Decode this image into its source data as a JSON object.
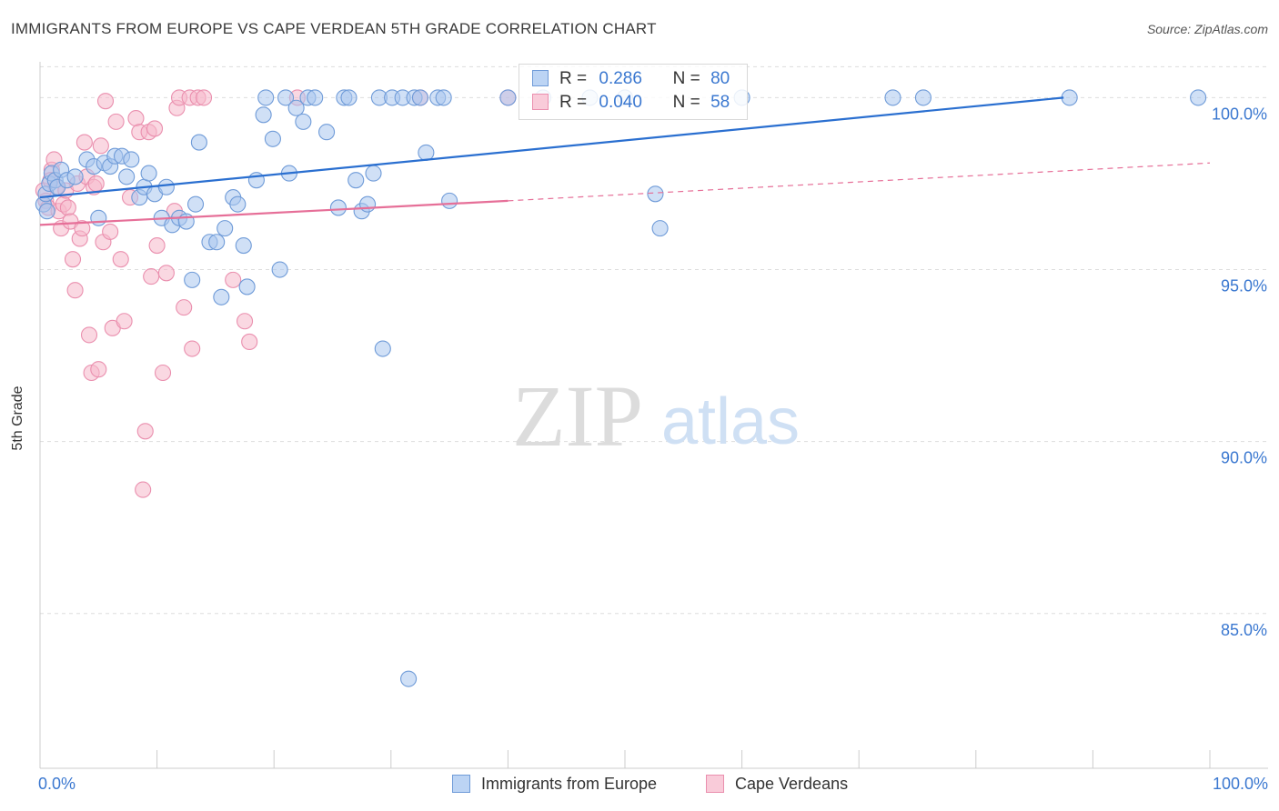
{
  "title": "IMMIGRANTS FROM EUROPE VS CAPE VERDEAN 5TH GRADE CORRELATION CHART",
  "source": "Source: ZipAtlas.com",
  "watermark": {
    "zip": "ZIP",
    "atlas": "atlas"
  },
  "colors": {
    "blue_fill": "#a9c6ef",
    "blue_stroke": "#6f9bd8",
    "blue_line": "#2a6fd0",
    "pink_fill": "#f6b8cb",
    "pink_stroke": "#ea8fae",
    "pink_line": "#e66f98",
    "tick_text": "#3b78d0",
    "grid": "#dddddd"
  },
  "legend_top": {
    "rows": [
      {
        "r_label": "R =",
        "r_value": "0.286",
        "n_label": "N =",
        "n_value": "80"
      },
      {
        "r_label": "R =",
        "r_value": "0.040",
        "n_label": "N =",
        "n_value": "58"
      }
    ]
  },
  "legend_bottom": [
    "Immigrants from Europe",
    "Cape Verdeans"
  ],
  "chart_data": {
    "type": "scatter",
    "title": "IMMIGRANTS FROM EUROPE VS CAPE VERDEAN 5TH GRADE CORRELATION CHART",
    "xlabel": "",
    "ylabel": "5th Grade",
    "xlim": [
      0,
      100
    ],
    "ylim": [
      80.5,
      101.2
    ],
    "x_tick_labels": [
      "0.0%",
      "100.0%"
    ],
    "y_ticks": [
      85,
      90,
      95,
      100
    ],
    "y_tick_labels": [
      "85.0%",
      "90.0%",
      "95.0%",
      "100.0%"
    ],
    "series": [
      {
        "name": "Immigrants from Europe",
        "r": 0.286,
        "n": 80,
        "trend": {
          "x": [
            0,
            87.5
          ],
          "y": [
            97.1,
            100
          ]
        },
        "points": [
          [
            0.3,
            96.9
          ],
          [
            0.5,
            97.2
          ],
          [
            0.8,
            97.5
          ],
          [
            1.0,
            97.8
          ],
          [
            1.3,
            97.6
          ],
          [
            1.5,
            97.4
          ],
          [
            1.8,
            97.9
          ],
          [
            2.3,
            97.6
          ],
          [
            3.0,
            97.7
          ],
          [
            4.0,
            98.2
          ],
          [
            4.6,
            98.0
          ],
          [
            5.0,
            96.5
          ],
          [
            5.5,
            98.1
          ],
          [
            6.0,
            98.0
          ],
          [
            6.4,
            98.3
          ],
          [
            7.0,
            98.3
          ],
          [
            7.8,
            98.2
          ],
          [
            7.4,
            97.7
          ],
          [
            8.5,
            97.1
          ],
          [
            8.9,
            97.4
          ],
          [
            9.3,
            97.8
          ],
          [
            9.8,
            97.2
          ],
          [
            10.4,
            96.5
          ],
          [
            10.8,
            97.4
          ],
          [
            11.3,
            96.3
          ],
          [
            11.9,
            96.5
          ],
          [
            12.5,
            96.4
          ],
          [
            13.0,
            94.7
          ],
          [
            13.3,
            96.9
          ],
          [
            13.6,
            98.7
          ],
          [
            14.5,
            95.8
          ],
          [
            15.1,
            95.8
          ],
          [
            15.5,
            94.2
          ],
          [
            15.8,
            96.2
          ],
          [
            16.5,
            97.1
          ],
          [
            16.9,
            96.9
          ],
          [
            17.4,
            95.7
          ],
          [
            17.7,
            94.5
          ],
          [
            18.5,
            97.6
          ],
          [
            19.1,
            99.5
          ],
          [
            19.3,
            100.0
          ],
          [
            19.9,
            98.8
          ],
          [
            20.5,
            95.0
          ],
          [
            21.0,
            100.0
          ],
          [
            21.3,
            97.8
          ],
          [
            21.9,
            99.7
          ],
          [
            22.5,
            99.3
          ],
          [
            22.9,
            100.0
          ],
          [
            23.5,
            100.0
          ],
          [
            24.5,
            99.0
          ],
          [
            25.5,
            96.8
          ],
          [
            26.0,
            100.0
          ],
          [
            26.4,
            100.0
          ],
          [
            27.0,
            97.6
          ],
          [
            27.5,
            96.7
          ],
          [
            28.0,
            96.9
          ],
          [
            28.5,
            97.8
          ],
          [
            29.0,
            100.0
          ],
          [
            29.3,
            92.7
          ],
          [
            30.1,
            100.0
          ],
          [
            31.0,
            100.0
          ],
          [
            31.5,
            83.1
          ],
          [
            32.0,
            100.0
          ],
          [
            32.5,
            100.0
          ],
          [
            33.0,
            98.4
          ],
          [
            34.0,
            100.0
          ],
          [
            34.5,
            100.0
          ],
          [
            35.0,
            97.0
          ],
          [
            40.0,
            100.0
          ],
          [
            43.0,
            100.0
          ],
          [
            47.0,
            100.0
          ],
          [
            50.0,
            100.0
          ],
          [
            52.6,
            97.2
          ],
          [
            53.0,
            96.2
          ],
          [
            60.0,
            100.0
          ],
          [
            72.9,
            100.0
          ],
          [
            75.5,
            100.0
          ],
          [
            88.0,
            100.0
          ],
          [
            99.0,
            100.0
          ],
          [
            0.6,
            96.7
          ]
        ]
      },
      {
        "name": "Cape Verdeans",
        "r": 0.04,
        "n": 58,
        "trend": {
          "x": [
            0,
            40.0
          ],
          "y": [
            96.3,
            97.0
          ]
        },
        "trend_dashed": {
          "x": [
            40.0,
            100
          ],
          "y": [
            97.0,
            98.1
          ]
        },
        "points": [
          [
            0.3,
            97.3
          ],
          [
            0.5,
            97.0
          ],
          [
            0.7,
            96.8
          ],
          [
            1.0,
            97.9
          ],
          [
            1.2,
            98.2
          ],
          [
            1.4,
            97.4
          ],
          [
            1.6,
            96.7
          ],
          [
            1.8,
            96.2
          ],
          [
            2.0,
            96.9
          ],
          [
            2.2,
            97.3
          ],
          [
            2.4,
            96.8
          ],
          [
            2.6,
            96.4
          ],
          [
            2.8,
            95.3
          ],
          [
            3.0,
            94.4
          ],
          [
            3.2,
            97.5
          ],
          [
            3.4,
            95.9
          ],
          [
            3.6,
            96.2
          ],
          [
            3.8,
            98.7
          ],
          [
            4.0,
            97.7
          ],
          [
            4.2,
            93.1
          ],
          [
            4.4,
            92.0
          ],
          [
            4.6,
            97.4
          ],
          [
            4.8,
            97.5
          ],
          [
            5.0,
            92.1
          ],
          [
            5.2,
            98.6
          ],
          [
            5.4,
            95.8
          ],
          [
            5.6,
            99.9
          ],
          [
            6.0,
            96.1
          ],
          [
            6.2,
            93.3
          ],
          [
            6.5,
            99.3
          ],
          [
            6.9,
            95.3
          ],
          [
            7.2,
            93.5
          ],
          [
            7.7,
            97.1
          ],
          [
            8.2,
            99.4
          ],
          [
            8.5,
            99.0
          ],
          [
            8.8,
            88.6
          ],
          [
            9.0,
            90.3
          ],
          [
            9.3,
            99.0
          ],
          [
            9.5,
            94.8
          ],
          [
            9.8,
            99.1
          ],
          [
            10.0,
            95.7
          ],
          [
            10.5,
            92.0
          ],
          [
            10.8,
            94.9
          ],
          [
            11.5,
            96.7
          ],
          [
            11.7,
            99.7
          ],
          [
            11.9,
            100.0
          ],
          [
            12.3,
            93.9
          ],
          [
            12.8,
            100.0
          ],
          [
            13.0,
            92.7
          ],
          [
            13.5,
            100.0
          ],
          [
            14.0,
            100.0
          ],
          [
            16.5,
            94.7
          ],
          [
            17.5,
            93.5
          ],
          [
            17.9,
            92.9
          ],
          [
            22.0,
            100.0
          ],
          [
            32.5,
            100.0
          ],
          [
            40.0,
            100.0
          ],
          [
            0.9,
            97.6
          ]
        ]
      }
    ]
  }
}
